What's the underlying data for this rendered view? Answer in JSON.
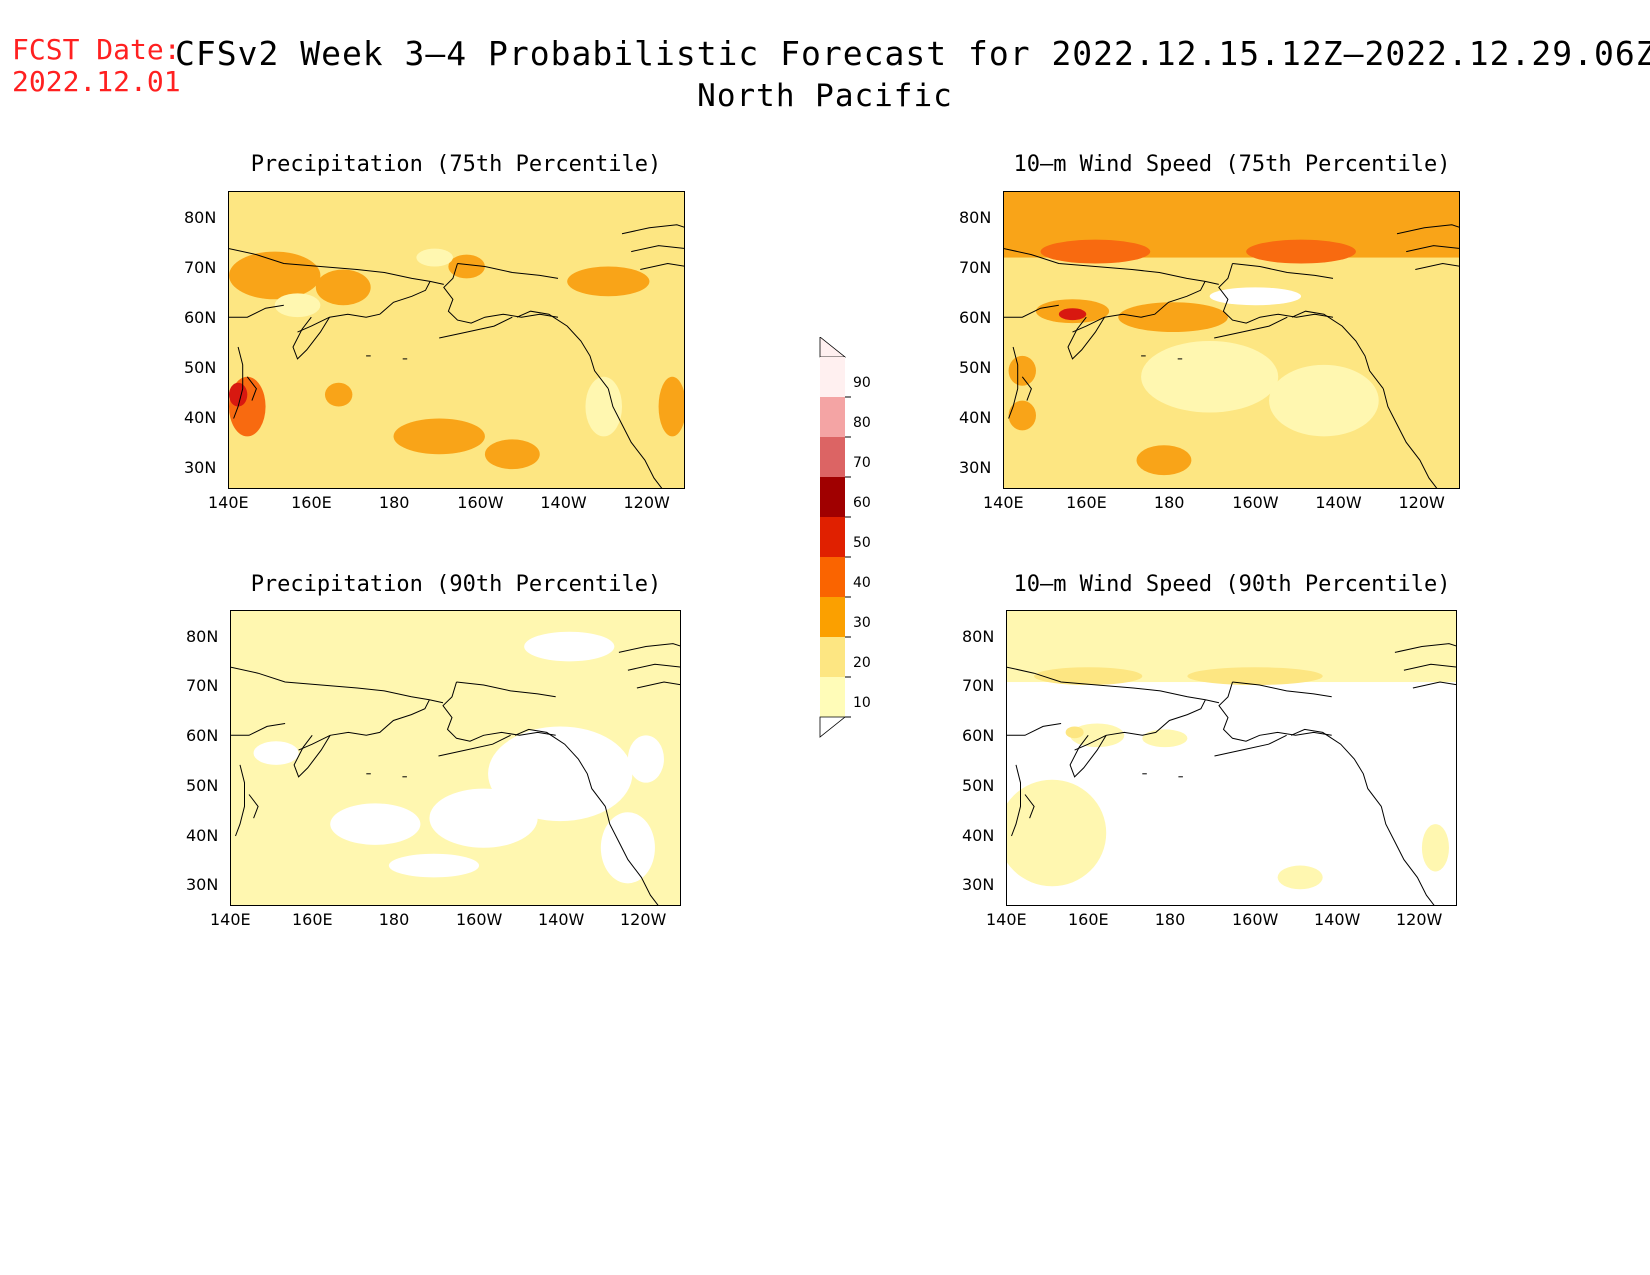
{
  "header": {
    "fcst_label": "FCST Date:",
    "fcst_date": "2022.12.01",
    "title": "CFSv2 Week 3–4 Probabilistic Forecast for 2022.12.15.12Z–2022.12.29.06Z",
    "subtitle": "North Pacific"
  },
  "axes": {
    "lon_labels": [
      "140E",
      "160E",
      "180",
      "160W",
      "140W",
      "120W"
    ],
    "lat_labels": [
      "80N",
      "70N",
      "60N",
      "50N",
      "40N",
      "30N"
    ]
  },
  "panels": [
    {
      "id": "precip-75",
      "title": "Precipitation (75th Percentile)"
    },
    {
      "id": "wind-75",
      "title": "10–m Wind Speed (75th Percentile)"
    },
    {
      "id": "precip-90",
      "title": "Precipitation (90th Percentile)"
    },
    {
      "id": "wind-90",
      "title": "10–m Wind Speed (90th Percentile)"
    }
  ],
  "colorbar": {
    "levels": [
      "90",
      "80",
      "70",
      "60",
      "50",
      "40",
      "30",
      "20",
      "10"
    ],
    "colors": [
      "#fff0f0",
      "#f4a4a4",
      "#dc6464",
      "#a00000",
      "#e02000",
      "#fa6400",
      "#fba000",
      "#fde682",
      "#fffcb8"
    ]
  },
  "shading_colors": {
    "white": "#ffffff",
    "pale": "#fff7b0",
    "light": "#fde682",
    "orange": "#f9a418",
    "dark_orange": "#f86a10",
    "red": "#d81810",
    "dark_red": "#a00000"
  }
}
